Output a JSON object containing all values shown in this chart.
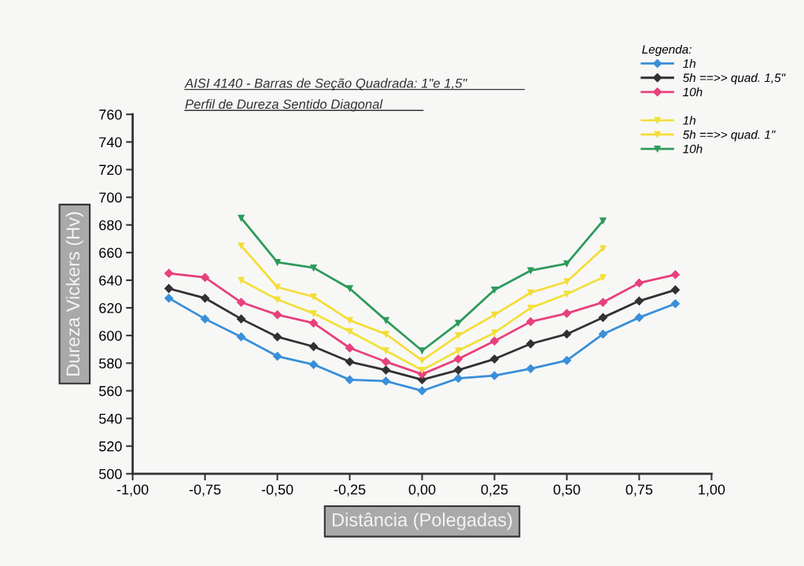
{
  "chart_data": {
    "type": "line",
    "title": "AISI 4140 - Barras de Seção Quadrada: 1\"e 1,5\"",
    "subtitle": "Perfil de Dureza Sentido Diagonal",
    "xlabel": "Distância (Polegadas)",
    "ylabel": "Dureza Vickers (Hv)",
    "legend_title": "Legenda:",
    "legend": "top right",
    "grid": false,
    "xlim": [
      -1,
      1
    ],
    "ylim": [
      500,
      760
    ],
    "xticks": [
      {
        "value": -1,
        "label": "-1,00"
      },
      {
        "value": -0.75,
        "label": "-0,75"
      },
      {
        "value": -0.5,
        "label": "-0,50"
      },
      {
        "value": -0.25,
        "label": "-0,25"
      },
      {
        "value": 0,
        "label": "0,00"
      },
      {
        "value": 0.25,
        "label": "0,25"
      },
      {
        "value": 0.5,
        "label": "0,50"
      },
      {
        "value": 0.75,
        "label": "0,75"
      },
      {
        "value": 1,
        "label": "1,00"
      }
    ],
    "yticks": [
      500,
      520,
      540,
      560,
      580,
      600,
      620,
      640,
      660,
      680,
      700,
      720,
      740,
      760
    ],
    "series": [
      {
        "name": "1h",
        "color": "#3a8fd8",
        "marker": "diamond",
        "x": [
          -0.875,
          -0.75,
          -0.625,
          -0.5,
          -0.375,
          -0.25,
          -0.125,
          0,
          0.125,
          0.25,
          0.375,
          0.5,
          0.625,
          0.75,
          0.875
        ],
        "values": [
          627,
          612,
          599,
          585,
          579,
          568,
          567,
          560,
          569,
          571,
          576,
          582,
          601,
          613,
          623
        ]
      },
      {
        "name": "5h ==>> quad. 1,5\"",
        "color": "#333033",
        "marker": "diamond",
        "x": [
          -0.875,
          -0.75,
          -0.625,
          -0.5,
          -0.375,
          -0.25,
          -0.125,
          0,
          0.125,
          0.25,
          0.375,
          0.5,
          0.625,
          0.75,
          0.875
        ],
        "values": [
          634,
          627,
          612,
          599,
          592,
          581,
          575,
          568,
          575,
          583,
          594,
          601,
          613,
          625,
          633
        ]
      },
      {
        "name": "10h",
        "color": "#e8407e",
        "marker": "diamond",
        "x": [
          -0.875,
          -0.75,
          -0.625,
          -0.5,
          -0.375,
          -0.25,
          -0.125,
          0,
          0.125,
          0.25,
          0.375,
          0.5,
          0.625,
          0.75,
          0.875
        ],
        "values": [
          645,
          642,
          624,
          615,
          609,
          591,
          581,
          572,
          583,
          596,
          610,
          616,
          624,
          638,
          644
        ]
      },
      {
        "name": "1h",
        "color": "#f2e03c",
        "marker": "triangle",
        "x": [
          -0.625,
          -0.5,
          -0.375,
          -0.25,
          -0.125,
          0,
          0.125,
          0.25,
          0.375,
          0.5,
          0.625
        ],
        "values": [
          640,
          626,
          616,
          603,
          589,
          575,
          589,
          602,
          620,
          630,
          642
        ]
      },
      {
        "name": "5h ==>> quad. 1\"",
        "color": "#f5dc3a",
        "marker": "triangle",
        "x": [
          -0.625,
          -0.5,
          -0.375,
          -0.25,
          -0.125,
          0,
          0.125,
          0.25,
          0.375,
          0.5,
          0.625
        ],
        "values": [
          665,
          635,
          628,
          611,
          601,
          582,
          600,
          615,
          631,
          639,
          663
        ]
      },
      {
        "name": "10h",
        "color": "#2e9a5a",
        "marker": "triangle",
        "x": [
          -0.625,
          -0.5,
          -0.375,
          -0.25,
          -0.125,
          0,
          0.125,
          0.25,
          0.375,
          0.5,
          0.625
        ],
        "values": [
          685,
          653,
          649,
          634,
          611,
          589,
          609,
          633,
          647,
          652,
          683
        ]
      }
    ]
  }
}
